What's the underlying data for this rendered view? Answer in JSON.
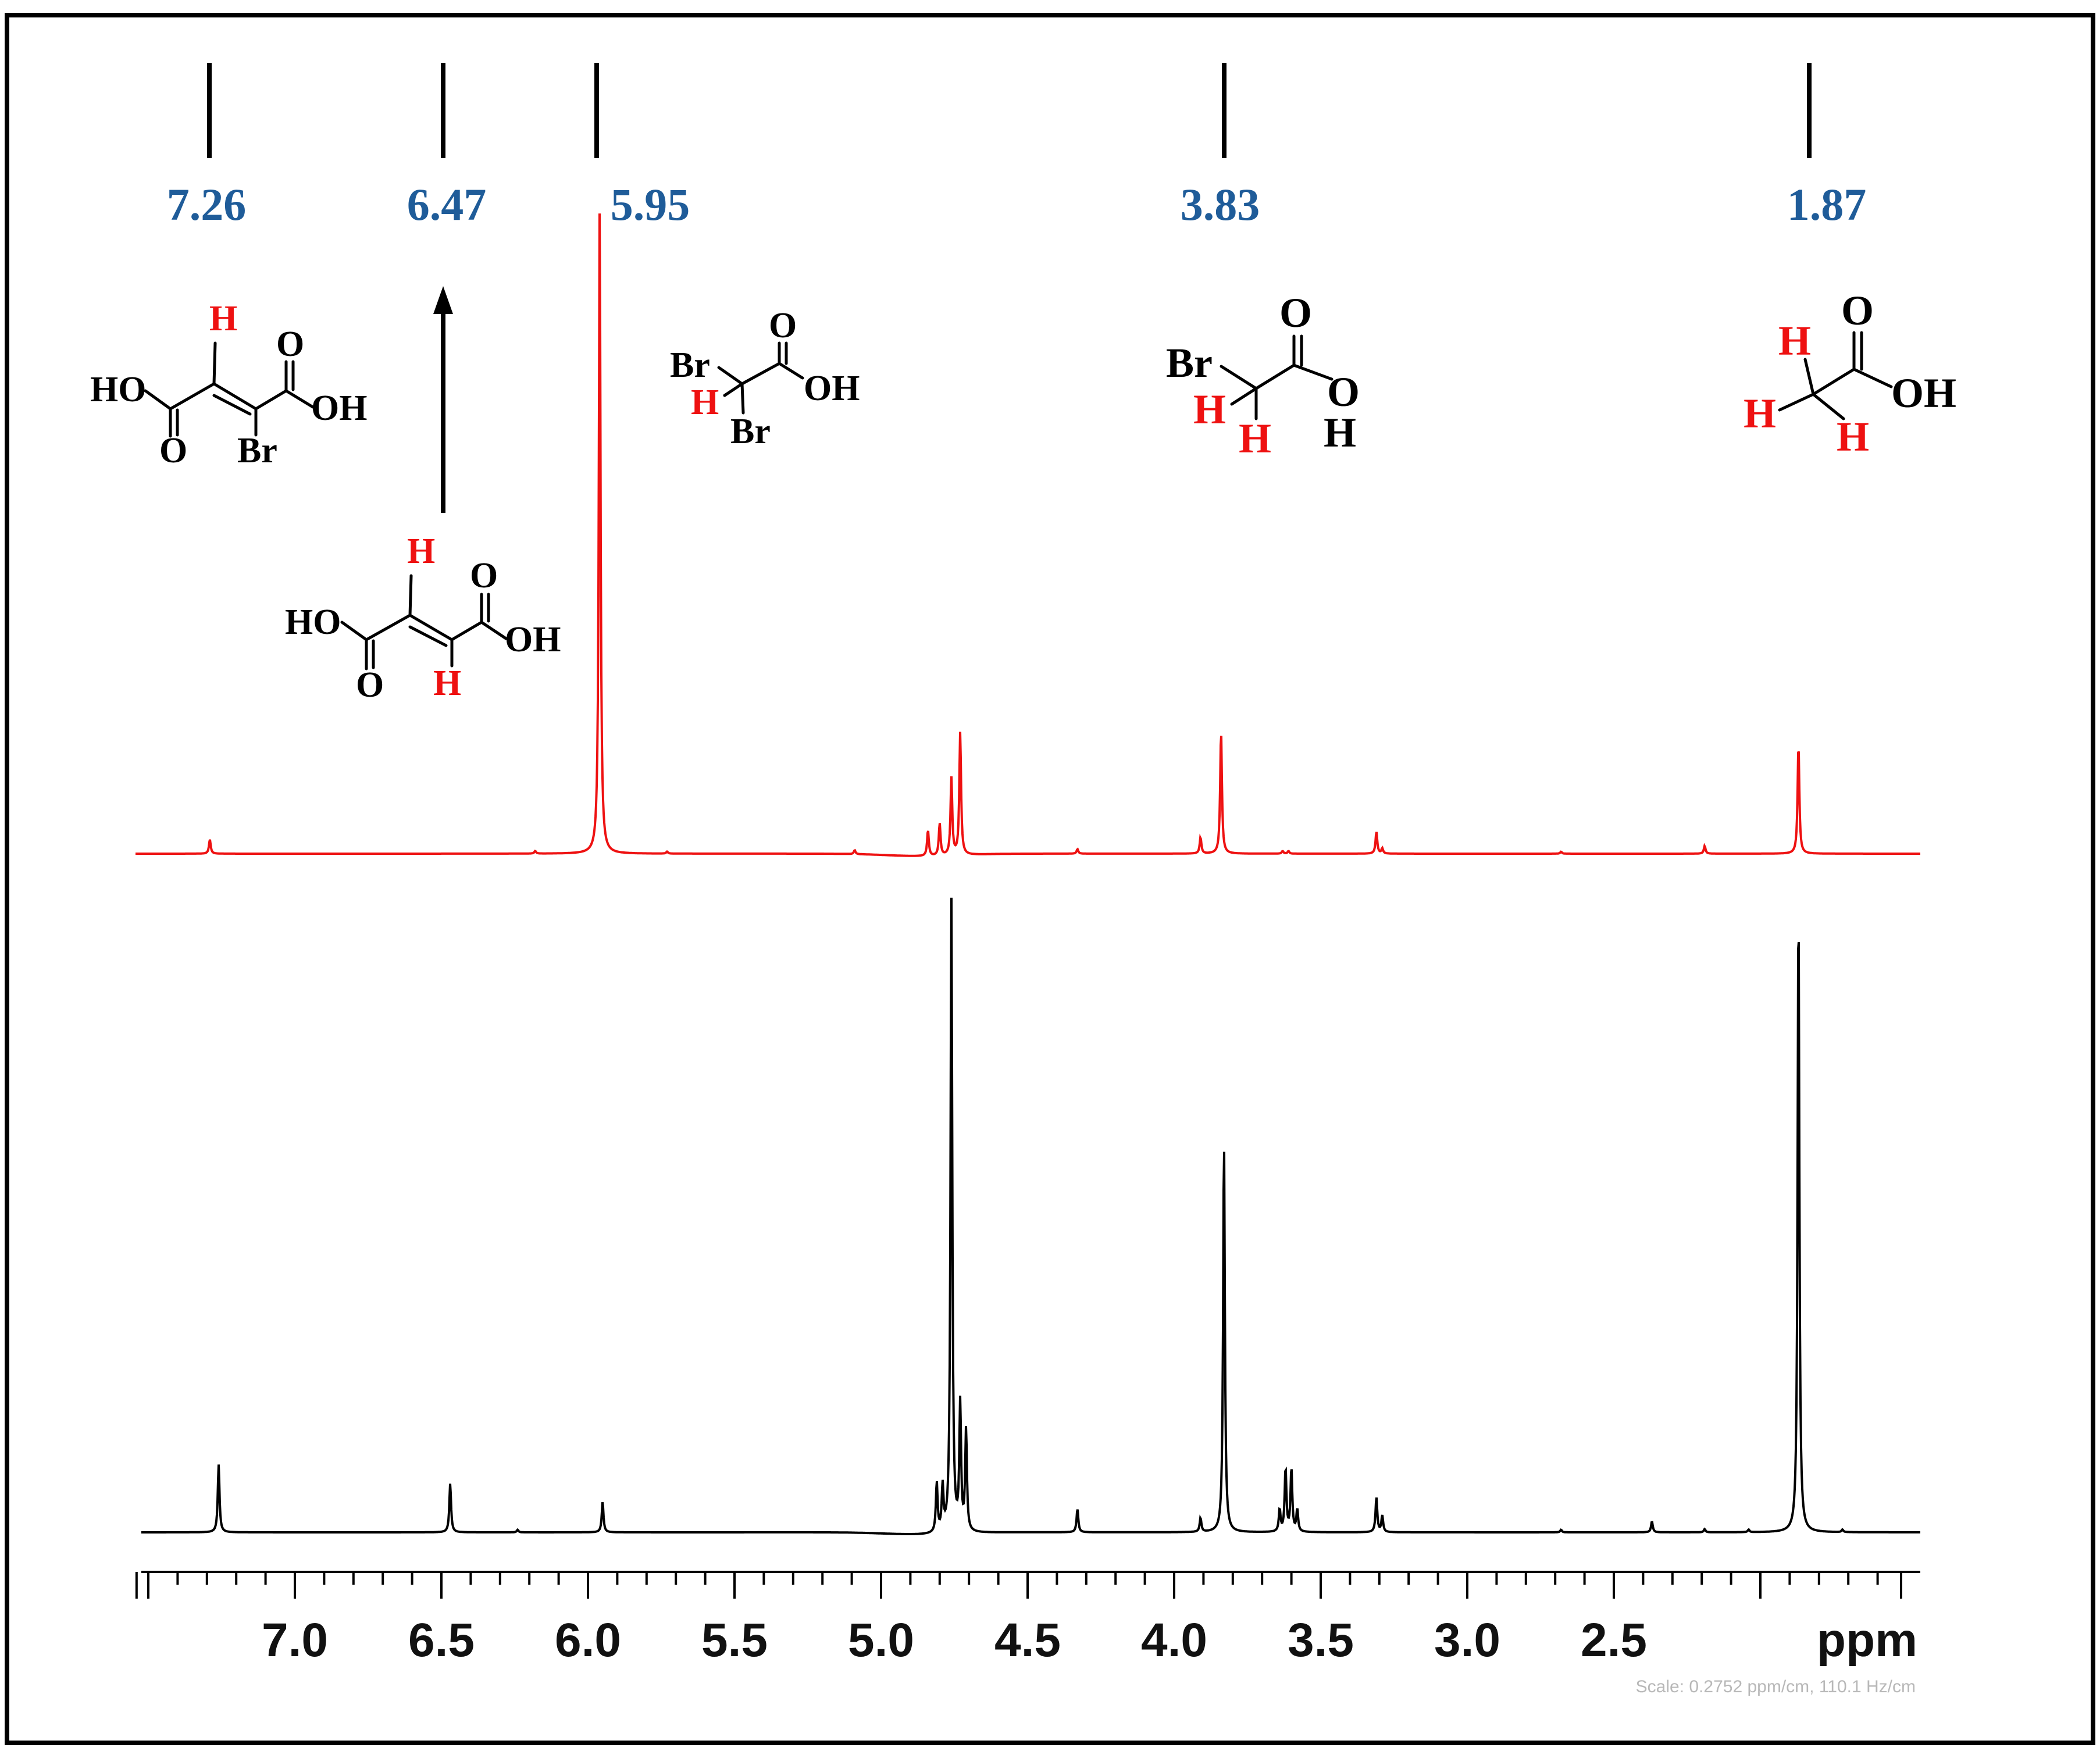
{
  "chart_data": {
    "type": "line",
    "title": "",
    "xlabel": "ppm",
    "ylabel": "",
    "xlim": [
      7.54,
      1.52
    ],
    "x_reversed": true,
    "x_ticks": [
      "7.0",
      "6.5",
      "6.0",
      "5.5",
      "5.0",
      "4.5",
      "4.0",
      "3.5",
      "3.0",
      "2.5"
    ],
    "x_tick_values": [
      7.0,
      6.5,
      6.0,
      5.5,
      5.0,
      4.5,
      4.0,
      3.5,
      3.0,
      2.5
    ],
    "grid": false,
    "legend": "none",
    "scale_note": "Scale: 0.2752 ppm/cm, 110.1 Hz/cm",
    "reference_markers": [
      {
        "ppm": 7.26,
        "label": "7.26"
      },
      {
        "ppm": 6.47,
        "label": "6.47"
      },
      {
        "ppm": 5.95,
        "label": "5.95"
      },
      {
        "ppm": 3.83,
        "label": "3.83"
      },
      {
        "ppm": 1.87,
        "label": "1.87"
      }
    ],
    "series": [
      {
        "color": "#ee1111",
        "baseline": 0,
        "peaks": [
          {
            "ppm": 7.29,
            "height": 0.022
          },
          {
            "ppm": 6.18,
            "height": 0.004
          },
          {
            "ppm": 5.96,
            "height": 1.0
          },
          {
            "ppm": 5.73,
            "height": 0.003
          },
          {
            "ppm": 5.09,
            "height": 0.006
          },
          {
            "ppm": 4.84,
            "height": 0.04
          },
          {
            "ppm": 4.8,
            "height": 0.05
          },
          {
            "ppm": 4.76,
            "height": 0.12
          },
          {
            "ppm": 4.73,
            "height": 0.19
          },
          {
            "ppm": 4.33,
            "height": 0.007
          },
          {
            "ppm": 3.91,
            "height": 0.025
          },
          {
            "ppm": 3.84,
            "height": 0.19
          },
          {
            "ppm": 3.63,
            "height": 0.004
          },
          {
            "ppm": 3.61,
            "height": 0.004
          },
          {
            "ppm": 3.31,
            "height": 0.034
          },
          {
            "ppm": 3.29,
            "height": 0.008
          },
          {
            "ppm": 2.68,
            "height": 0.003
          },
          {
            "ppm": 2.19,
            "height": 0.012
          },
          {
            "ppm": 1.87,
            "height": 0.17
          }
        ]
      },
      {
        "color": "#000000",
        "baseline": 0,
        "peaks": [
          {
            "ppm": 7.26,
            "height": 0.107
          },
          {
            "ppm": 6.47,
            "height": 0.077
          },
          {
            "ppm": 6.24,
            "height": 0.004
          },
          {
            "ppm": 5.95,
            "height": 0.048
          },
          {
            "ppm": 4.81,
            "height": 0.078
          },
          {
            "ppm": 4.79,
            "height": 0.07
          },
          {
            "ppm": 4.76,
            "height": 1.0
          },
          {
            "ppm": 4.73,
            "height": 0.2
          },
          {
            "ppm": 4.71,
            "height": 0.16
          },
          {
            "ppm": 4.33,
            "height": 0.037
          },
          {
            "ppm": 3.91,
            "height": 0.022
          },
          {
            "ppm": 3.83,
            "height": 0.62
          },
          {
            "ppm": 3.64,
            "height": 0.035
          },
          {
            "ppm": 3.62,
            "height": 0.1
          },
          {
            "ppm": 3.6,
            "height": 0.1
          },
          {
            "ppm": 3.58,
            "height": 0.035
          },
          {
            "ppm": 3.31,
            "height": 0.055
          },
          {
            "ppm": 3.29,
            "height": 0.026
          },
          {
            "ppm": 2.68,
            "height": 0.004
          },
          {
            "ppm": 2.37,
            "height": 0.017
          },
          {
            "ppm": 2.19,
            "height": 0.005
          },
          {
            "ppm": 2.04,
            "height": 0.004
          },
          {
            "ppm": 1.87,
            "height": 1.0
          },
          {
            "ppm": 1.72,
            "height": 0.004
          }
        ]
      }
    ]
  },
  "structures": {
    "bromofumaric_acid": {
      "ho": "HO",
      "oh": "OH",
      "o_top": "O",
      "o_bottom": "O",
      "br": "Br",
      "h": "H"
    },
    "fumaric_acid": {
      "ho": "HO",
      "oh": "OH",
      "o_top": "O",
      "o_bottom": "O",
      "h_top": "H",
      "h_bottom": "H"
    },
    "dibromoacetic_acid": {
      "br1": "Br",
      "br2": "Br",
      "h": "H",
      "o": "O",
      "oh": "OH"
    },
    "bromoacetic_acid": {
      "br": "Br",
      "h1": "H",
      "h2": "H",
      "o1": "O",
      "o2": "O",
      "h_acid": "H"
    },
    "acetic_acid": {
      "o": "O",
      "oh": "OH",
      "h1": "H",
      "h2": "H",
      "h3": "H"
    }
  }
}
